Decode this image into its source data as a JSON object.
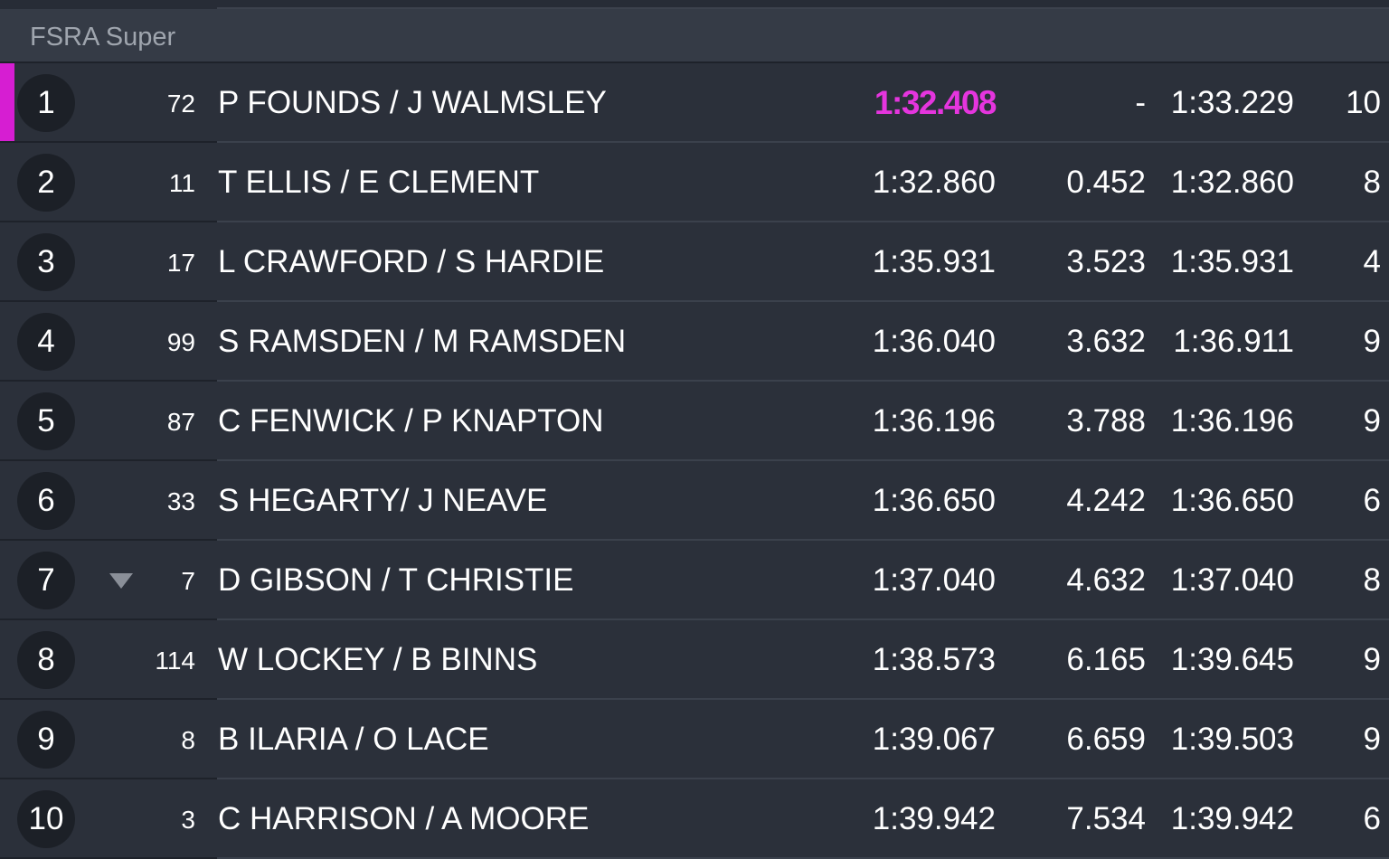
{
  "class_header": {
    "title": "FSRA Super"
  },
  "colors": {
    "fastest_lap": "#e535de",
    "leader_bar": "#d61ed2"
  },
  "results": [
    {
      "pos": "1",
      "trend": "",
      "car": "72",
      "drivers": "P FOUNDS / J WALMSLEY",
      "best": "1:32.408",
      "gap": "-",
      "last": "1:33.229",
      "laps": "10",
      "fastest": true
    },
    {
      "pos": "2",
      "trend": "",
      "car": "11",
      "drivers": "T ELLIS / E CLEMENT",
      "best": "1:32.860",
      "gap": "0.452",
      "last": "1:32.860",
      "laps": "8",
      "fastest": false
    },
    {
      "pos": "3",
      "trend": "",
      "car": "17",
      "drivers": "L CRAWFORD / S HARDIE",
      "best": "1:35.931",
      "gap": "3.523",
      "last": "1:35.931",
      "laps": "4",
      "fastest": false
    },
    {
      "pos": "4",
      "trend": "",
      "car": "99",
      "drivers": "S RAMSDEN / M RAMSDEN",
      "best": "1:36.040",
      "gap": "3.632",
      "last": "1:36.911",
      "laps": "9",
      "fastest": false
    },
    {
      "pos": "5",
      "trend": "",
      "car": "87",
      "drivers": "C FENWICK / P KNAPTON",
      "best": "1:36.196",
      "gap": "3.788",
      "last": "1:36.196",
      "laps": "9",
      "fastest": false
    },
    {
      "pos": "6",
      "trend": "",
      "car": "33",
      "drivers": "S HEGARTY/ J NEAVE",
      "best": "1:36.650",
      "gap": "4.242",
      "last": "1:36.650",
      "laps": "6",
      "fastest": false
    },
    {
      "pos": "7",
      "trend": "down",
      "car": "7",
      "drivers": "D GIBSON / T CHRISTIE",
      "best": "1:37.040",
      "gap": "4.632",
      "last": "1:37.040",
      "laps": "8",
      "fastest": false
    },
    {
      "pos": "8",
      "trend": "",
      "car": "114",
      "drivers": "W LOCKEY / B BINNS",
      "best": "1:38.573",
      "gap": "6.165",
      "last": "1:39.645",
      "laps": "9",
      "fastest": false
    },
    {
      "pos": "9",
      "trend": "",
      "car": "8",
      "drivers": "B ILARIA / O LACE",
      "best": "1:39.067",
      "gap": "6.659",
      "last": "1:39.503",
      "laps": "9",
      "fastest": false
    },
    {
      "pos": "10",
      "trend": "",
      "car": "3",
      "drivers": "C HARRISON / A MOORE",
      "best": "1:39.942",
      "gap": "7.534",
      "last": "1:39.942",
      "laps": "6",
      "fastest": false
    }
  ]
}
